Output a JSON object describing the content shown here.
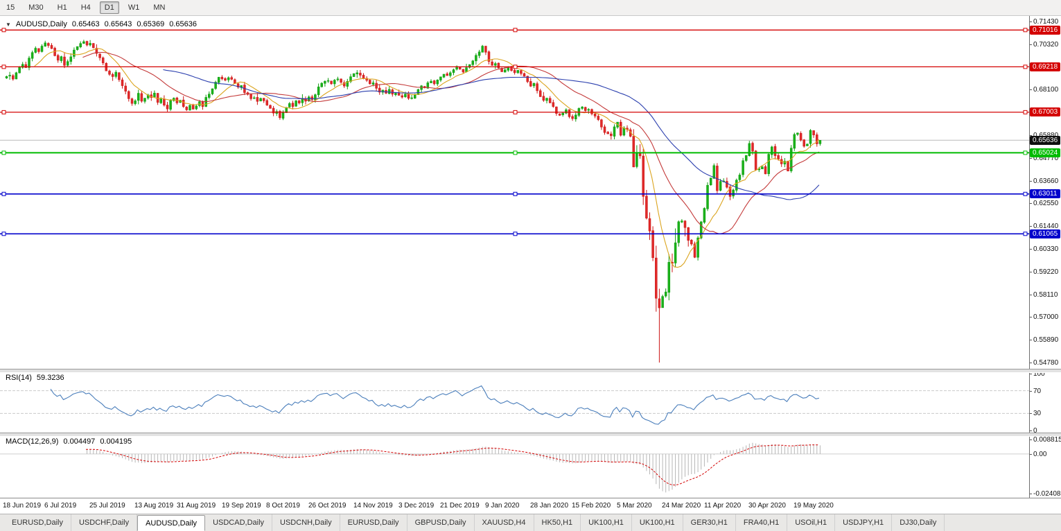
{
  "toolbar": {
    "timeframes": [
      {
        "label": "15",
        "active": false
      },
      {
        "label": "M30",
        "active": false
      },
      {
        "label": "H1",
        "active": false
      },
      {
        "label": "H4",
        "active": false
      },
      {
        "label": "D1",
        "active": true
      },
      {
        "label": "W1",
        "active": false
      },
      {
        "label": "MN",
        "active": false
      }
    ],
    "scroll_arrow": "▼"
  },
  "main_chart": {
    "header": {
      "collapse_arrow": "▼",
      "title": "AUDUSD,Daily",
      "open": "0.65463",
      "high": "0.65643",
      "low": "0.65369",
      "close": "0.65636"
    },
    "current_price_label": "0.65636"
  },
  "rsi_pane": {
    "title": "RSI(14)",
    "value": "59.3236"
  },
  "macd_pane": {
    "title": "MACD(12,26,9)",
    "value_macd": "0.004497",
    "value_signal": "0.004195"
  },
  "tabs": [
    {
      "label": "EURUSD,Daily",
      "active": false
    },
    {
      "label": "USDCHF,Daily",
      "active": false
    },
    {
      "label": "AUDUSD,Daily",
      "active": true
    },
    {
      "label": "USDCAD,Daily",
      "active": false
    },
    {
      "label": "USDCNH,Daily",
      "active": false
    },
    {
      "label": "EURUSD,Daily",
      "active": false
    },
    {
      "label": "GBPUSD,Daily",
      "active": false
    },
    {
      "label": "XAUUSD,H4",
      "active": false
    },
    {
      "label": "HK50,H1",
      "active": false
    },
    {
      "label": "UK100,H1",
      "active": false
    },
    {
      "label": "UK100,H1",
      "active": false
    },
    {
      "label": "GER30,H1",
      "active": false
    },
    {
      "label": "FRA40,H1",
      "active": false
    },
    {
      "label": "USOil,H1",
      "active": false
    },
    {
      "label": "USDJPY,H1",
      "active": false
    },
    {
      "label": "DJ30,Daily",
      "active": false
    }
  ],
  "chart_data": {
    "type": "candlestick",
    "symbol": "AUDUSD",
    "timeframe": "Daily",
    "ohlc_current": {
      "open": 0.65463,
      "high": 0.65643,
      "low": 0.65369,
      "close": 0.65636
    },
    "crash_low": 0.5478,
    "ylim": [
      0.5468,
      0.715
    ],
    "bar_spacing": 4.64,
    "closes": [
      0.6875,
      0.6881,
      0.6862,
      0.6893,
      0.6921,
      0.6934,
      0.6918,
      0.6965,
      0.6992,
      0.7013,
      0.6996,
      0.7023,
      0.7039,
      0.7026,
      0.7011,
      0.6976,
      0.6954,
      0.6972,
      0.6929,
      0.6948,
      0.6971,
      0.7004,
      0.7021,
      0.7036,
      0.7045,
      0.7028,
      0.7037,
      0.7015,
      0.6987,
      0.6966,
      0.6941,
      0.6902,
      0.6885,
      0.6874,
      0.6896,
      0.6859,
      0.683,
      0.6803,
      0.6766,
      0.6743,
      0.6756,
      0.6793,
      0.6754,
      0.6769,
      0.6785,
      0.6772,
      0.6794,
      0.6748,
      0.6766,
      0.6735,
      0.6716,
      0.6758,
      0.6769,
      0.6746,
      0.6759,
      0.6728,
      0.6712,
      0.6734,
      0.6715,
      0.6731,
      0.6752,
      0.6728,
      0.6773,
      0.6789,
      0.6815,
      0.6847,
      0.6871,
      0.6863,
      0.6856,
      0.6869,
      0.6861,
      0.6841,
      0.6823,
      0.6831,
      0.6796,
      0.6787,
      0.6766,
      0.6771,
      0.6753,
      0.6768,
      0.6756,
      0.6735,
      0.6719,
      0.6696,
      0.6704,
      0.6673,
      0.6698,
      0.6724,
      0.6743,
      0.6728,
      0.6756,
      0.6745,
      0.6768,
      0.6754,
      0.6775,
      0.6762,
      0.6786,
      0.6824,
      0.6842,
      0.6851,
      0.6855,
      0.6839,
      0.6857,
      0.6863,
      0.6846,
      0.6828,
      0.6851,
      0.6874,
      0.6889,
      0.6893,
      0.6881,
      0.6864,
      0.6856,
      0.6839,
      0.6844,
      0.6817,
      0.6798,
      0.6809,
      0.6793,
      0.6812,
      0.6788,
      0.6796,
      0.6783,
      0.6774,
      0.6789,
      0.6768,
      0.6771,
      0.6785,
      0.6811,
      0.6829,
      0.6819,
      0.6844,
      0.6852,
      0.6839,
      0.6858,
      0.6873,
      0.6886,
      0.6879,
      0.6893,
      0.6908,
      0.6924,
      0.6911,
      0.6896,
      0.6918,
      0.6933,
      0.6951,
      0.6978,
      0.6995,
      0.7023,
      0.6993,
      0.6948,
      0.6929,
      0.6938,
      0.6916,
      0.6898,
      0.6907,
      0.6921,
      0.6904,
      0.6893,
      0.6905,
      0.6889,
      0.6876,
      0.6849,
      0.6827,
      0.6841,
      0.6805,
      0.6776,
      0.6758,
      0.6769,
      0.6746,
      0.6728,
      0.6694,
      0.6685,
      0.6696,
      0.6712,
      0.6678,
      0.6669,
      0.6687,
      0.6719,
      0.6726,
      0.6708,
      0.6714,
      0.6692,
      0.6681,
      0.6664,
      0.6628,
      0.6601,
      0.6595,
      0.6585,
      0.6629,
      0.6652,
      0.6588,
      0.6624,
      0.6616,
      0.6583,
      0.6433,
      0.6501,
      0.6487,
      0.6289,
      0.6183,
      0.612,
      0.599,
      0.5792,
      0.5745,
      0.5801,
      0.5823,
      0.5968,
      0.5962,
      0.6063,
      0.6166,
      0.617,
      0.6137,
      0.6074,
      0.6057,
      0.5992,
      0.6087,
      0.6165,
      0.6231,
      0.6344,
      0.6379,
      0.644,
      0.6317,
      0.6363,
      0.6365,
      0.6334,
      0.6289,
      0.6321,
      0.6369,
      0.6394,
      0.6464,
      0.6489,
      0.6548,
      0.651,
      0.6418,
      0.6425,
      0.6434,
      0.6399,
      0.6495,
      0.6531,
      0.6488,
      0.6471,
      0.6448,
      0.6461,
      0.6413,
      0.6525,
      0.6592,
      0.6599,
      0.6564,
      0.6534,
      0.6545,
      0.6612,
      0.6589,
      0.6546,
      0.65636
    ],
    "price_ticks": [
      "0.71430",
      "0.70320",
      "0.69210",
      "0.68100",
      "0.66990",
      "0.65880",
      "0.64770",
      "0.63660",
      "0.62550",
      "0.61440",
      "0.60330",
      "0.59220",
      "0.58110",
      "0.57000",
      "0.55890",
      "0.54780"
    ],
    "date_ticks": [
      {
        "label": "18 Jun 2019",
        "i": 0
      },
      {
        "label": "6 Jul 2019",
        "i": 13
      },
      {
        "label": "25 Jul 2019",
        "i": 27
      },
      {
        "label": "13 Aug 2019",
        "i": 41
      },
      {
        "label": "31 Aug 2019",
        "i": 54
      },
      {
        "label": "19 Sep 2019",
        "i": 68
      },
      {
        "label": "8 Oct 2019",
        "i": 82
      },
      {
        "label": "26 Oct 2019",
        "i": 95
      },
      {
        "label": "14 Nov 2019",
        "i": 109
      },
      {
        "label": "3 Dec 2019",
        "i": 123
      },
      {
        "label": "21 Dec 2019",
        "i": 136
      },
      {
        "label": "9 Jan 2020",
        "i": 150
      },
      {
        "label": "28 Jan 2020",
        "i": 164
      },
      {
        "label": "15 Feb 2020",
        "i": 177
      },
      {
        "label": "5 Mar 2020",
        "i": 191
      },
      {
        "label": "24 Mar 2020",
        "i": 205
      },
      {
        "label": "11 Apr 2020",
        "i": 218
      },
      {
        "label": "30 Apr 2020",
        "i": 232
      },
      {
        "label": "19 May 2020",
        "i": 246
      }
    ],
    "levels": [
      {
        "price": 0.71016,
        "label": "0.71016",
        "color": "#d40000",
        "width": 1.3
      },
      {
        "price": 0.69218,
        "label": "0.69218",
        "color": "#d40000",
        "width": 1.3
      },
      {
        "price": 0.67003,
        "label": "0.67003",
        "color": "#d40000",
        "width": 1.3
      },
      {
        "price": 0.65024,
        "label": "0.65024",
        "color": "#00bb00",
        "width": 2
      },
      {
        "price": 0.63011,
        "label": "0.63011",
        "color": "#0000cc",
        "width": 1.7
      },
      {
        "price": 0.61065,
        "label": "0.61065",
        "color": "#0000cc",
        "width": 1.7
      }
    ],
    "moving_averages": [
      {
        "type": "sma",
        "period": 10,
        "color": "#dba41e"
      },
      {
        "type": "sma",
        "period": 25,
        "color": "#c43a3a"
      },
      {
        "type": "sma",
        "period": 50,
        "color": "#2b3fae"
      }
    ],
    "indicators": {
      "rsi": {
        "name": "RSI",
        "period": 14,
        "current": 59.3236,
        "levels": [
          100,
          70,
          30,
          0
        ],
        "color": "#4a7ebb"
      },
      "macd": {
        "name": "MACD",
        "fast": 12,
        "slow": 26,
        "signal": 9,
        "current_macd": 0.004497,
        "current_signal": 0.004195,
        "ylim": [
          -0.0252,
          0.01
        ],
        "axis_labels": [
          "0.008815",
          "0.00",
          "-0.02408"
        ],
        "histogram_color": "#b6b6b6",
        "signal_color": "#d40000"
      }
    },
    "candle_colors": {
      "up": "#0f9b0f",
      "up_fill": "#1ab21a",
      "down": "#cc1414",
      "down_fill": "#e02a2a"
    },
    "current_price_line_color": "#b9b9b9"
  }
}
